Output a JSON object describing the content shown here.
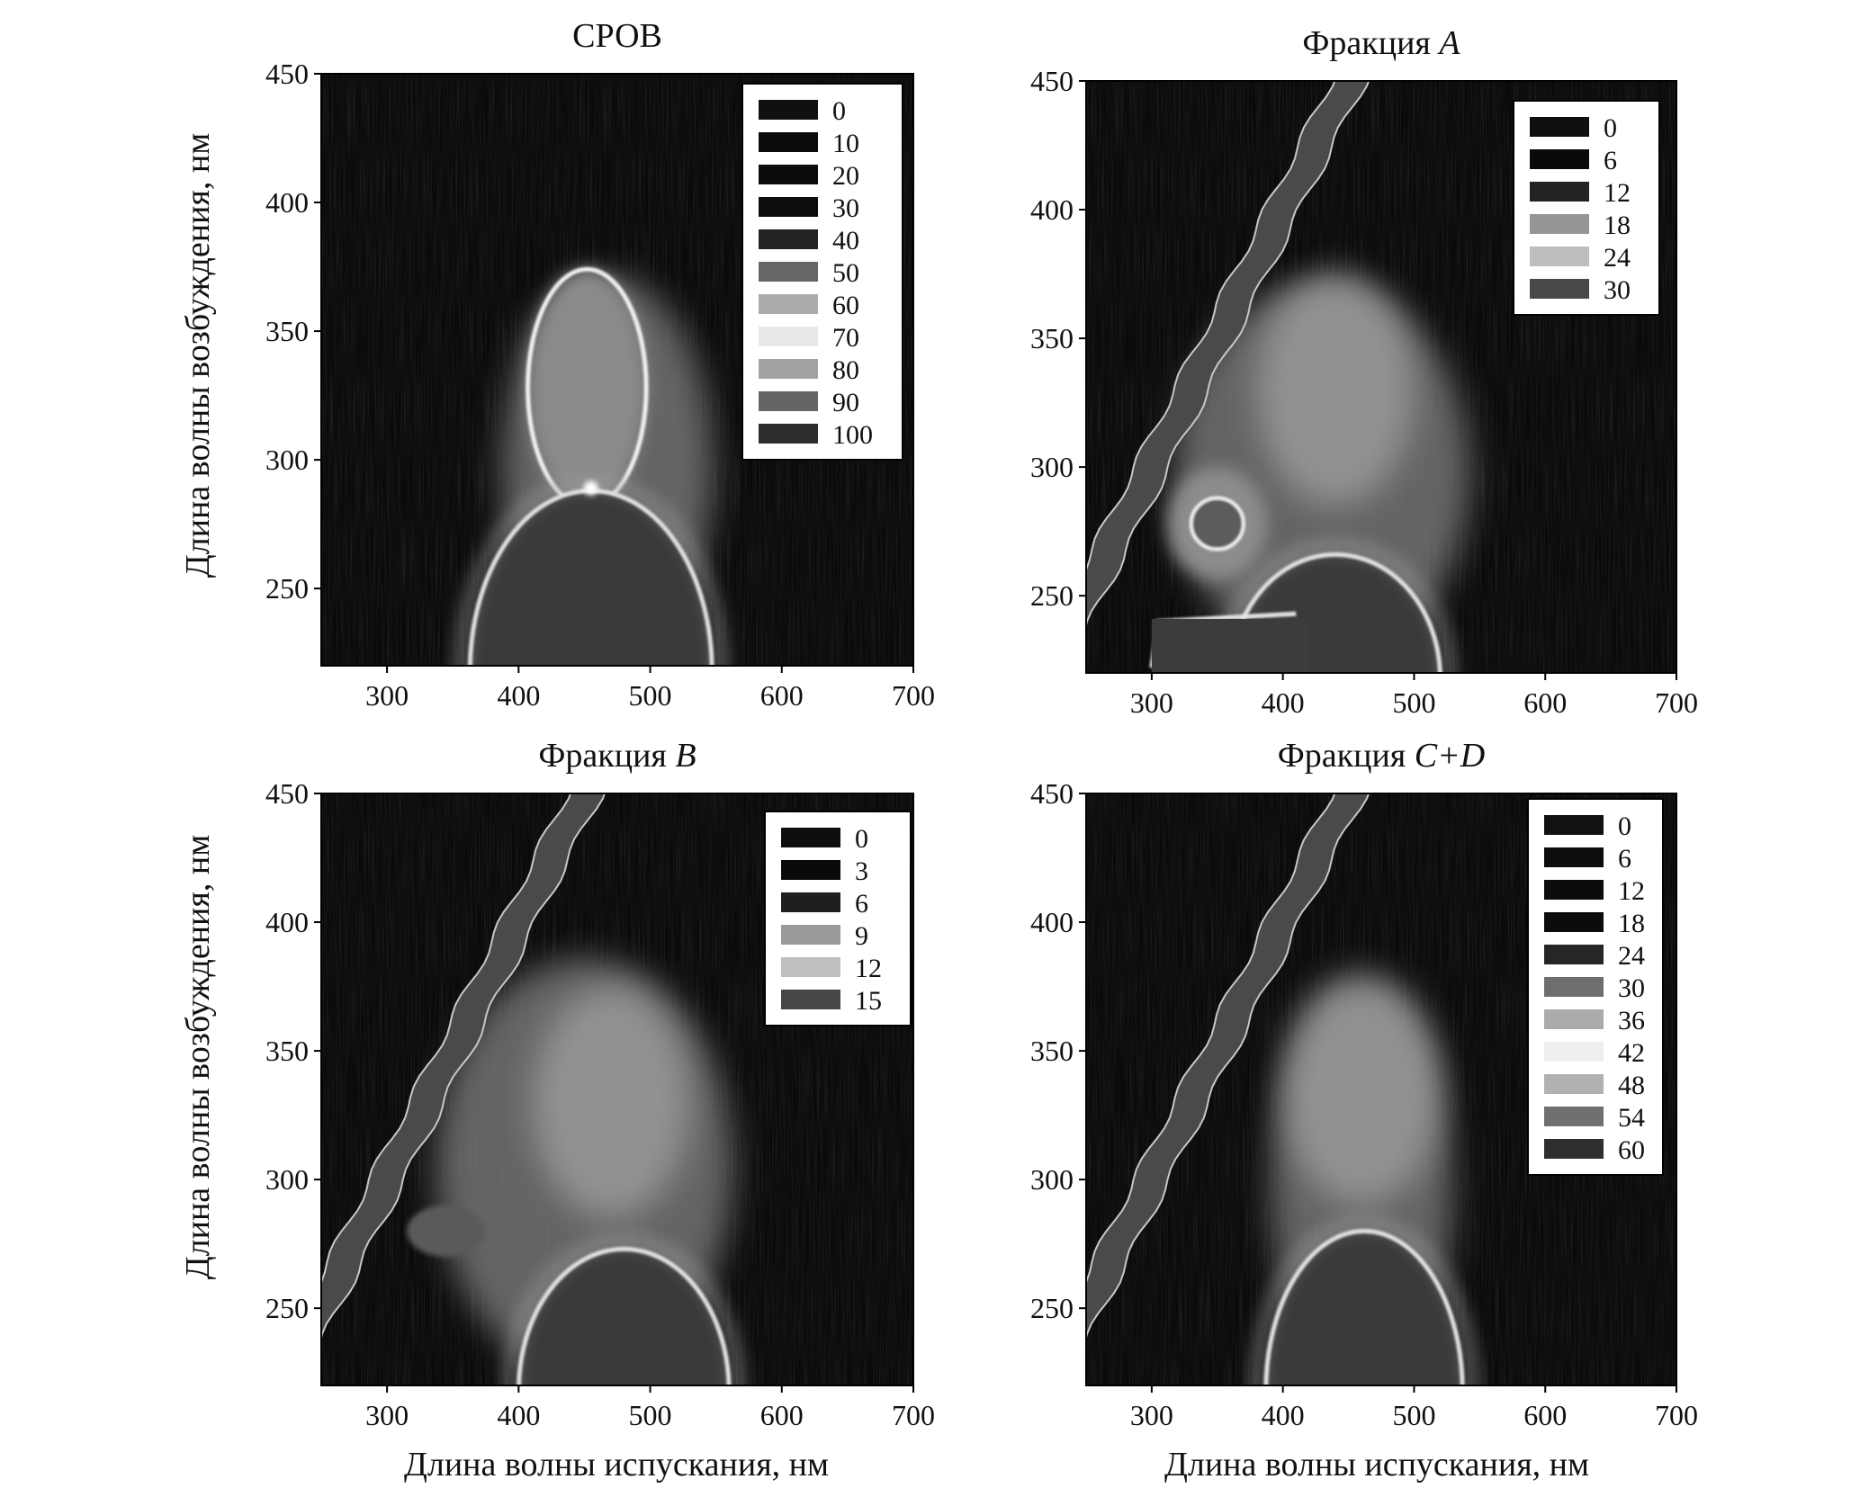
{
  "figure": {
    "ylabel": "Длина волны возбуждения, нм",
    "xlabel": "Длина волны испускания, нм"
  },
  "chart_data": [
    {
      "type": "heatmap",
      "title": "СРОВ",
      "title_italic": "",
      "xlim": [
        250,
        700
      ],
      "ylim": [
        220,
        450
      ],
      "xticks": [
        300,
        400,
        500,
        600,
        700
      ],
      "yticks": [
        250,
        300,
        350,
        400,
        450
      ],
      "legend_position": "top-right",
      "legend": [
        "0",
        "10",
        "20",
        "30",
        "40",
        "50",
        "60",
        "70",
        "80",
        "90",
        "100"
      ],
      "legend_shades": [
        "#101010",
        "#0c0c0c",
        "#0c0c0c",
        "#0d0d0d",
        "#222222",
        "#666666",
        "#ababab",
        "#e8e8e8",
        "#a2a2a2",
        "#656565",
        "#2d2d2d"
      ],
      "scatter_band": false,
      "features": {
        "upper_ring_center": [
          452,
          328
        ],
        "upper_ring_radius": [
          45,
          46
        ],
        "lower_arch_center": [
          455,
          218
        ],
        "lower_arch_radius": [
          92,
          70
        ],
        "raman_cross": [
          455,
          289
        ],
        "glow_extent_em": [
          375,
          560
        ],
        "glow_extent_ex": [
          220,
          375
        ]
      }
    },
    {
      "type": "heatmap",
      "title": "Фракция ",
      "title_italic": "A",
      "xlim": [
        250,
        700
      ],
      "ylim": [
        220,
        450
      ],
      "xticks": [
        300,
        400,
        500,
        600,
        700
      ],
      "yticks": [
        250,
        300,
        350,
        400,
        450
      ],
      "legend_position": "top-right",
      "legend": [
        "0",
        "6",
        "12",
        "18",
        "24",
        "30"
      ],
      "legend_shades": [
        "#0f0f0f",
        "#0a0a0a",
        "#232323",
        "#969696",
        "#bdbdbd",
        "#484848"
      ],
      "scatter_band": true,
      "features": {
        "peak_a": [
          440,
          330
        ],
        "small_ring_center": [
          350,
          278
        ],
        "small_ring_radius": [
          20,
          10
        ],
        "lower_edge_em": [
          300,
          520
        ],
        "lower_edge_ex": [
          265,
          235
        ],
        "glow_extent_em": [
          300,
          560
        ],
        "glow_extent_ex": [
          220,
          375
        ]
      }
    },
    {
      "type": "heatmap",
      "title": "Фракция ",
      "title_italic": "B",
      "xlim": [
        250,
        700
      ],
      "ylim": [
        220,
        450
      ],
      "xticks": [
        300,
        400,
        500,
        600,
        700
      ],
      "yticks": [
        250,
        300,
        350,
        400,
        450
      ],
      "legend_position": "top-right",
      "legend": [
        "0",
        "3",
        "6",
        "9",
        "12",
        "15"
      ],
      "legend_shades": [
        "#0e0e0e",
        "#0a0a0a",
        "#1f1f1f",
        "#9a9a9a",
        "#bfbfbf",
        "#464646"
      ],
      "scatter_band": true,
      "features": {
        "peak_a": [
          470,
          330
        ],
        "weak_patch_center": [
          345,
          280
        ],
        "lower_arch_center": [
          480,
          218
        ],
        "lower_arch_radius": [
          80,
          55
        ],
        "glow_extent_em": [
          320,
          580
        ],
        "glow_extent_ex": [
          220,
          390
        ]
      }
    },
    {
      "type": "heatmap",
      "title": "Фракция ",
      "title_italic": "C+D",
      "xlim": [
        250,
        700
      ],
      "ylim": [
        220,
        450
      ],
      "xticks": [
        300,
        400,
        500,
        600,
        700
      ],
      "yticks": [
        250,
        300,
        350,
        400,
        450
      ],
      "legend_position": "top-right",
      "legend": [
        "0",
        "6",
        "12",
        "18",
        "24",
        "30",
        "36",
        "42",
        "48",
        "54",
        "60"
      ],
      "legend_shades": [
        "#111111",
        "#0d0d0d",
        "#0b0b0b",
        "#0c0c0c",
        "#262626",
        "#6e6e6e",
        "#ababab",
        "#efefef",
        "#b1b1b1",
        "#707070",
        "#2f2f2f"
      ],
      "scatter_band": true,
      "features": {
        "peak_a": [
          460,
          335
        ],
        "lower_arch_center": [
          462,
          218
        ],
        "lower_arch_radius": [
          75,
          62
        ],
        "glow_extent_em": [
          380,
          540
        ],
        "glow_extent_ex": [
          220,
          375
        ]
      }
    }
  ]
}
